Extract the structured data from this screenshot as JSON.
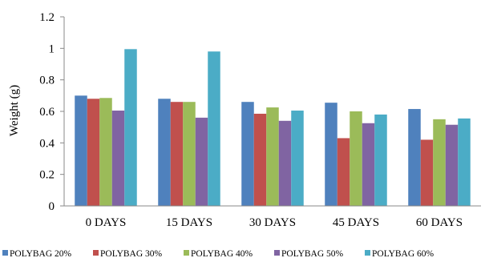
{
  "chart_data": {
    "type": "bar",
    "categories": [
      "0 DAYS",
      "15 DAYS",
      "30 DAYS",
      "45 DAYS",
      "60 DAYS"
    ],
    "series": [
      {
        "name": "POLYBAG 20%",
        "color": "#4F81BD",
        "values": [
          0.7,
          0.68,
          0.66,
          0.655,
          0.615
        ]
      },
      {
        "name": "POLYBAG 30%",
        "color": "#C0504D",
        "values": [
          0.68,
          0.66,
          0.585,
          0.43,
          0.42
        ]
      },
      {
        "name": "POLYBAG 40%",
        "color": "#9BBB59",
        "values": [
          0.685,
          0.66,
          0.625,
          0.6,
          0.55
        ]
      },
      {
        "name": "POLYBAG 50%",
        "color": "#8064A2",
        "values": [
          0.605,
          0.56,
          0.54,
          0.525,
          0.515
        ]
      },
      {
        "name": "POLYBAG 60%",
        "color": "#4BACC6",
        "values": [
          0.995,
          0.98,
          0.605,
          0.58,
          0.555
        ]
      }
    ],
    "yticks": [
      "0",
      "0.2",
      "0.4",
      "0.6",
      "0.8",
      "1",
      "1.2"
    ],
    "ylim": [
      0,
      1.2
    ],
    "xlabel": "",
    "ylabel": "Weight (g)",
    "legend_position": "bottom",
    "grid": false
  }
}
